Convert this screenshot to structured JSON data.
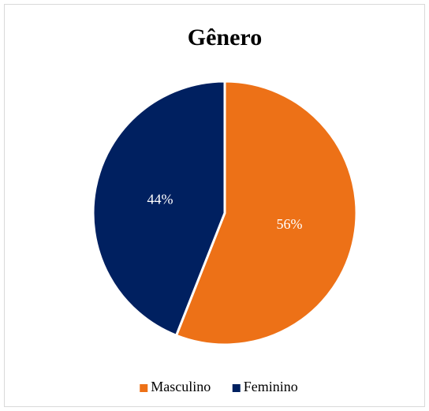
{
  "chart_data": {
    "type": "pie",
    "title": "Gênero",
    "categories": [
      "Masculino",
      "Feminino"
    ],
    "values": [
      56,
      44
    ],
    "value_labels": [
      "56%",
      "44%"
    ],
    "colors": [
      "#ED7117",
      "#002060"
    ],
    "legend": "bottom"
  }
}
